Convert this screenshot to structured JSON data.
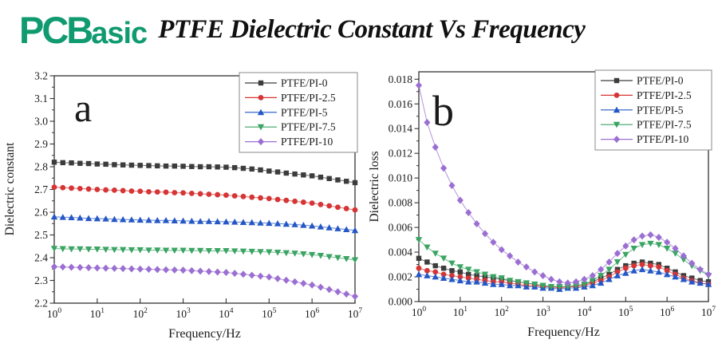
{
  "header": {
    "logo_pcb": "PCB",
    "logo_asic": "asic",
    "logo_color": "#109a70",
    "title": "PTFE Dielectric Constant Vs Frequency"
  },
  "chart_data": [
    {
      "id": "chartA",
      "type": "line",
      "panel_label": "a",
      "xlabel": "Frequency/Hz",
      "ylabel": "Dielectric constant",
      "x_scale": "log",
      "xlim_exponents": [
        0,
        7
      ],
      "xtick_exponents": [
        0,
        1,
        2,
        3,
        4,
        5,
        6,
        7
      ],
      "ylim": [
        2.2,
        3.2
      ],
      "yticks": [
        2.2,
        2.3,
        2.4,
        2.5,
        2.6,
        2.7,
        2.8,
        2.9,
        3.0,
        3.1,
        3.2
      ],
      "legend_position": "top-right",
      "x_log10": [
        0,
        0.2,
        0.4,
        0.6,
        0.8,
        1.0,
        1.2,
        1.4,
        1.6,
        1.8,
        2.0,
        2.2,
        2.4,
        2.6,
        2.8,
        3.0,
        3.2,
        3.4,
        3.6,
        3.8,
        4.0,
        4.2,
        4.4,
        4.6,
        4.8,
        5.0,
        5.2,
        5.4,
        5.6,
        5.8,
        6.0,
        6.2,
        6.4,
        6.6,
        6.8,
        7.0
      ],
      "series": [
        {
          "name": "PTFE/PI-0",
          "color": "#3c3c3c",
          "marker": "square",
          "values": [
            2.82,
            2.818,
            2.817,
            2.815,
            2.814,
            2.812,
            2.811,
            2.809,
            2.808,
            2.807,
            2.806,
            2.805,
            2.804,
            2.803,
            2.803,
            2.802,
            2.801,
            2.8,
            2.8,
            2.799,
            2.798,
            2.796,
            2.793,
            2.79,
            2.786,
            2.781,
            2.777,
            2.772,
            2.768,
            2.764,
            2.76,
            2.754,
            2.748,
            2.742,
            2.736,
            2.73
          ]
        },
        {
          "name": "PTFE/PI-2.5",
          "color": "#d63535",
          "marker": "circle",
          "values": [
            2.71,
            2.708,
            2.706,
            2.704,
            2.702,
            2.7,
            2.698,
            2.697,
            2.695,
            2.693,
            2.692,
            2.69,
            2.689,
            2.688,
            2.686,
            2.685,
            2.683,
            2.681,
            2.679,
            2.677,
            2.675,
            2.672,
            2.669,
            2.666,
            2.663,
            2.66,
            2.656,
            2.652,
            2.648,
            2.644,
            2.64,
            2.634,
            2.628,
            2.622,
            2.616,
            2.61
          ]
        },
        {
          "name": "PTFE/PI-5",
          "color": "#2457c5",
          "marker": "triangle-up",
          "values": [
            2.58,
            2.578,
            2.577,
            2.575,
            2.573,
            2.572,
            2.571,
            2.569,
            2.568,
            2.567,
            2.566,
            2.565,
            2.564,
            2.564,
            2.563,
            2.562,
            2.561,
            2.56,
            2.56,
            2.559,
            2.558,
            2.557,
            2.556,
            2.555,
            2.553,
            2.552,
            2.55,
            2.548,
            2.546,
            2.543,
            2.54,
            2.536,
            2.532,
            2.528,
            2.524,
            2.52
          ]
        },
        {
          "name": "PTFE/PI-7.5",
          "color": "#3aa463",
          "marker": "triangle-down",
          "values": [
            2.44,
            2.439,
            2.438,
            2.438,
            2.437,
            2.437,
            2.436,
            2.435,
            2.435,
            2.434,
            2.434,
            2.433,
            2.433,
            2.432,
            2.432,
            2.432,
            2.431,
            2.431,
            2.43,
            2.43,
            2.43,
            2.429,
            2.428,
            2.427,
            2.426,
            2.425,
            2.423,
            2.421,
            2.419,
            2.416,
            2.413,
            2.409,
            2.404,
            2.4,
            2.395,
            2.39
          ]
        },
        {
          "name": "PTFE/PI-10",
          "color": "#9b6fd2",
          "marker": "diamond",
          "values": [
            2.36,
            2.359,
            2.358,
            2.357,
            2.356,
            2.355,
            2.354,
            2.353,
            2.352,
            2.351,
            2.35,
            2.349,
            2.348,
            2.347,
            2.346,
            2.345,
            2.343,
            2.341,
            2.339,
            2.337,
            2.335,
            2.331,
            2.327,
            2.323,
            2.319,
            2.315,
            2.308,
            2.301,
            2.294,
            2.287,
            2.28,
            2.27,
            2.26,
            2.25,
            2.24,
            2.23
          ]
        }
      ]
    },
    {
      "id": "chartB",
      "type": "line",
      "panel_label": "b",
      "xlabel": "Frequency/Hz",
      "ylabel": "Dielectric loss",
      "x_scale": "log",
      "xlim_exponents": [
        0,
        7
      ],
      "xtick_exponents": [
        0,
        1,
        2,
        3,
        4,
        5,
        6,
        7
      ],
      "ylim": [
        0.0,
        0.018
      ],
      "yticks": [
        0.0,
        0.002,
        0.004,
        0.006,
        0.008,
        0.01,
        0.012,
        0.014,
        0.016,
        0.018
      ],
      "legend_position": "top-right",
      "x_log10": [
        0,
        0.2,
        0.4,
        0.6,
        0.8,
        1.0,
        1.2,
        1.4,
        1.6,
        1.8,
        2.0,
        2.2,
        2.4,
        2.6,
        2.8,
        3.0,
        3.2,
        3.4,
        3.6,
        3.8,
        4.0,
        4.2,
        4.4,
        4.6,
        4.8,
        5.0,
        5.2,
        5.4,
        5.6,
        5.8,
        6.0,
        6.2,
        6.4,
        6.6,
        6.8,
        7.0
      ],
      "series": [
        {
          "name": "PTFE/PI-0",
          "color": "#3c3c3c",
          "marker": "square",
          "values": [
            0.0035,
            0.0032,
            0.0029,
            0.0027,
            0.0025,
            0.0024,
            0.0022,
            0.0021,
            0.002,
            0.0019,
            0.0018,
            0.0017,
            0.0016,
            0.0015,
            0.0014,
            0.0013,
            0.0012,
            0.0012,
            0.0012,
            0.0013,
            0.0014,
            0.0016,
            0.0019,
            0.0022,
            0.0026,
            0.0029,
            0.0031,
            0.0032,
            0.0031,
            0.003,
            0.0027,
            0.0024,
            0.0021,
            0.0019,
            0.0017,
            0.0016
          ]
        },
        {
          "name": "PTFE/PI-2.5",
          "color": "#d63535",
          "marker": "circle",
          "values": [
            0.0027,
            0.0025,
            0.0024,
            0.0022,
            0.0021,
            0.002,
            0.0019,
            0.0018,
            0.0017,
            0.0016,
            0.0016,
            0.0015,
            0.0014,
            0.0013,
            0.0013,
            0.0012,
            0.0012,
            0.0011,
            0.0012,
            0.0012,
            0.0013,
            0.0015,
            0.0017,
            0.002,
            0.0024,
            0.0027,
            0.0029,
            0.003,
            0.0029,
            0.0028,
            0.0025,
            0.0022,
            0.0019,
            0.0017,
            0.0015,
            0.0014
          ]
        },
        {
          "name": "PTFE/PI-5",
          "color": "#2457c5",
          "marker": "triangle-up",
          "values": [
            0.0022,
            0.0021,
            0.002,
            0.0019,
            0.0018,
            0.0017,
            0.0016,
            0.0016,
            0.0015,
            0.0014,
            0.0014,
            0.0013,
            0.0013,
            0.0012,
            0.0012,
            0.0011,
            0.0011,
            0.001,
            0.0011,
            0.0011,
            0.0012,
            0.0013,
            0.0015,
            0.0018,
            0.0021,
            0.0023,
            0.0025,
            0.0026,
            0.0025,
            0.0024,
            0.0022,
            0.002,
            0.0018,
            0.0016,
            0.0015,
            0.0014
          ]
        },
        {
          "name": "PTFE/PI-7.5",
          "color": "#3aa463",
          "marker": "triangle-down",
          "values": [
            0.005,
            0.0044,
            0.0039,
            0.0035,
            0.0031,
            0.0028,
            0.0026,
            0.0024,
            0.0022,
            0.002,
            0.0019,
            0.0017,
            0.0016,
            0.0015,
            0.0014,
            0.0013,
            0.0012,
            0.0012,
            0.0012,
            0.0013,
            0.0014,
            0.0017,
            0.0021,
            0.0026,
            0.0032,
            0.0038,
            0.0043,
            0.0046,
            0.0047,
            0.0046,
            0.0043,
            0.0039,
            0.0034,
            0.0029,
            0.0025,
            0.0021
          ]
        },
        {
          "name": "PTFE/PI-10",
          "color": "#9b6fd2",
          "marker": "diamond",
          "values": [
            0.0175,
            0.0145,
            0.0125,
            0.0108,
            0.0094,
            0.0082,
            0.0072,
            0.0063,
            0.0055,
            0.0048,
            0.0042,
            0.0037,
            0.0032,
            0.0028,
            0.0024,
            0.0021,
            0.0018,
            0.0016,
            0.0015,
            0.0016,
            0.0018,
            0.0021,
            0.0026,
            0.0032,
            0.0039,
            0.0045,
            0.005,
            0.0053,
            0.0054,
            0.0052,
            0.0048,
            0.0043,
            0.0037,
            0.0031,
            0.0026,
            0.0022
          ]
        }
      ]
    }
  ]
}
